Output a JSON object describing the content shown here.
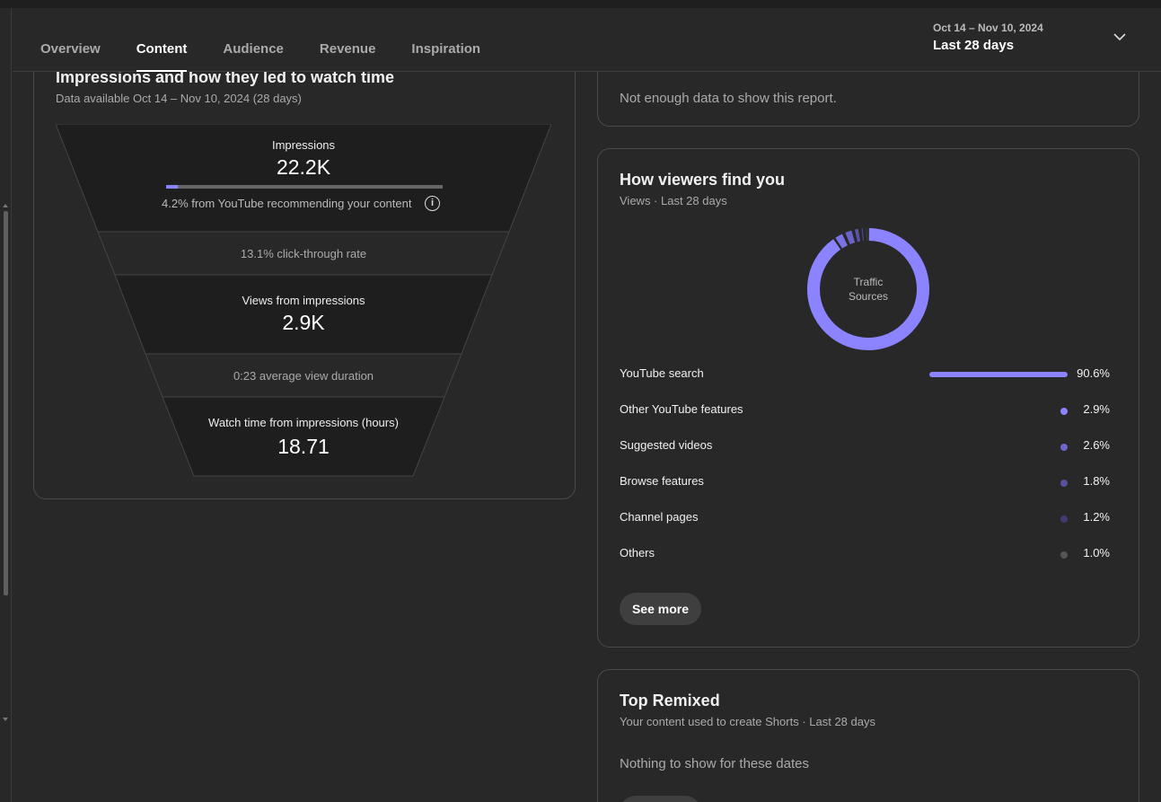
{
  "header": {
    "tabs": [
      {
        "label": "Overview",
        "active": false
      },
      {
        "label": "Content",
        "active": true
      },
      {
        "label": "Audience",
        "active": false
      },
      {
        "label": "Revenue",
        "active": false
      },
      {
        "label": "Inspiration",
        "active": false
      }
    ],
    "date_range": "Oct 14 – Nov 10, 2024",
    "date_period": "Last 28 days",
    "chevron_icon": "chevron-down-icon"
  },
  "funnel": {
    "title": "Impressions and how they led to watch time",
    "subtitle": "Data available Oct 14 – Nov 10, 2024 (28 days)",
    "impressions_label": "Impressions",
    "impressions_value": "22.2K",
    "recommending_fraction": 0.042,
    "recommending_note": "4.2% from YouTube recommending your content",
    "info_icon": "info-icon",
    "ctr": "13.1% click-through rate",
    "views_label": "Views from impressions",
    "views_value": "2.9K",
    "avg_duration": "0:23 average view duration",
    "watch_label": "Watch time from impressions (hours)",
    "watch_value": "18.71"
  },
  "top_card": {
    "message": "Not enough data to show this report."
  },
  "find": {
    "title": "How viewers find you",
    "subtitle": "Views · Last 28 days",
    "donut_label_line1": "Traffic",
    "donut_label_line2": "Sources",
    "sources": [
      {
        "label": "YouTube search",
        "pct": "90.6%",
        "value": 90.6,
        "color": "#8b83ff"
      },
      {
        "label": "Other YouTube features",
        "pct": "2.9%",
        "value": 2.9,
        "color": "#8b83ff"
      },
      {
        "label": "Suggested videos",
        "pct": "2.6%",
        "value": 2.6,
        "color": "#6f68cc"
      },
      {
        "label": "Browse features",
        "pct": "1.8%",
        "value": 1.8,
        "color": "#57519e"
      },
      {
        "label": "Channel pages",
        "pct": "1.2%",
        "value": 1.2,
        "color": "#403b70"
      },
      {
        "label": "Others",
        "pct": "1.0%",
        "value": 1.0,
        "color": "#555555"
      }
    ],
    "see_more": "See more"
  },
  "remix": {
    "title": "Top Remixed",
    "subtitle": "Your content used to create Shorts · Last 28 days",
    "empty": "Nothing to show for these dates"
  }
}
